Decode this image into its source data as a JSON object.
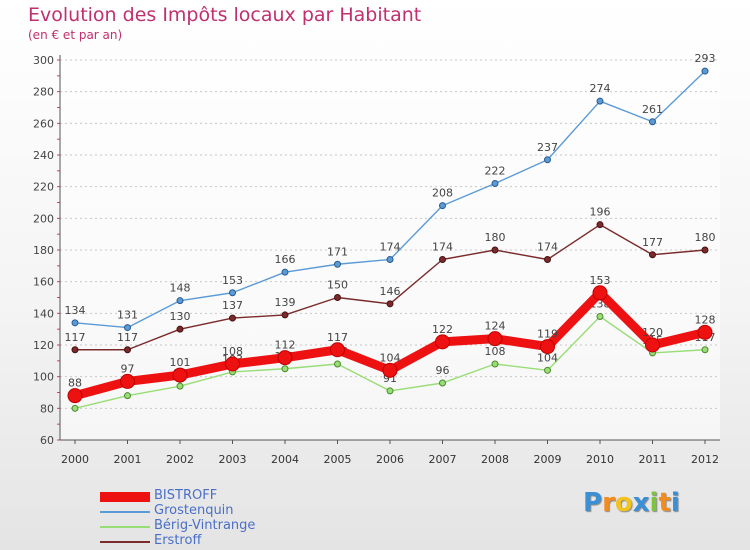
{
  "chart_data": {
    "type": "line",
    "title": "Evolution des Impôts locaux par Habitant",
    "subtitle": "(en € et par an)",
    "xlabel": "",
    "ylabel": "",
    "ylim": [
      60,
      300
    ],
    "yticks": [
      60,
      80,
      100,
      120,
      140,
      160,
      180,
      200,
      220,
      240,
      260,
      280,
      300
    ],
    "categories": [
      "2000",
      "2001",
      "2002",
      "2003",
      "2004",
      "2005",
      "2006",
      "2007",
      "2008",
      "2009",
      "2010",
      "2011",
      "2012"
    ],
    "grid": "horizontal",
    "legend": "bottom-left",
    "series": [
      {
        "name": "BISTROFF",
        "color": "#ee1111",
        "values": [
          88,
          97,
          101,
          108,
          112,
          117,
          104,
          122,
          124,
          119,
          153,
          120,
          128
        ]
      },
      {
        "name": "Grostenquin",
        "color": "#5b9bd5",
        "values": [
          134,
          131,
          148,
          153,
          166,
          171,
          174,
          208,
          222,
          237,
          274,
          261,
          293
        ]
      },
      {
        "name": "Bérig-Vintrange",
        "color": "#99dd77",
        "values": [
          80,
          88,
          94,
          103,
          105,
          108,
          91,
          96,
          108,
          104,
          138,
          115,
          117
        ]
      },
      {
        "name": "Erstroff",
        "color": "#7a2a2a",
        "values": [
          117,
          117,
          130,
          137,
          139,
          150,
          146,
          174,
          180,
          174,
          196,
          177,
          180
        ]
      }
    ]
  },
  "branding": {
    "logo_text": "Proxiti"
  }
}
